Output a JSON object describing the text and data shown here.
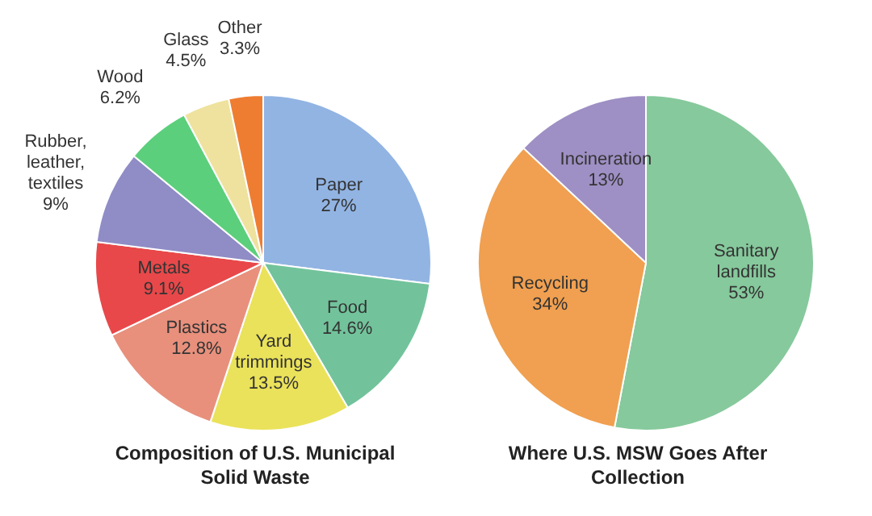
{
  "chart_data": [
    {
      "type": "pie",
      "title": "Composition of U.S. Municipal Solid Waste",
      "categories": [
        "Paper",
        "Food",
        "Yard trimmings",
        "Plastics",
        "Metals",
        "Rubber, leather, textiles",
        "Wood",
        "Glass",
        "Other"
      ],
      "values": [
        27,
        14.6,
        13.5,
        12.8,
        9.1,
        9,
        6.2,
        4.5,
        3.3
      ],
      "value_labels": [
        "27%",
        "14.6%",
        "13.5%",
        "12.8%",
        "9.1%",
        "9%",
        "6.2%",
        "4.5%",
        "3.3%"
      ],
      "colors": [
        "#92b4e3",
        "#72c39b",
        "#eae25a",
        "#e8907c",
        "#e8484a",
        "#8f8cc6",
        "#5ccf7c",
        "#eee29e",
        "#ee7d32"
      ]
    },
    {
      "type": "pie",
      "title": "Where U.S. MSW Goes After Collection",
      "categories": [
        "Sanitary landfills",
        "Recycling",
        "Incineration"
      ],
      "values": [
        53,
        34,
        13
      ],
      "value_labels": [
        "53%",
        "34%",
        "13%"
      ],
      "colors": [
        "#86c99c",
        "#f0a050",
        "#9e8fc4"
      ]
    }
  ]
}
